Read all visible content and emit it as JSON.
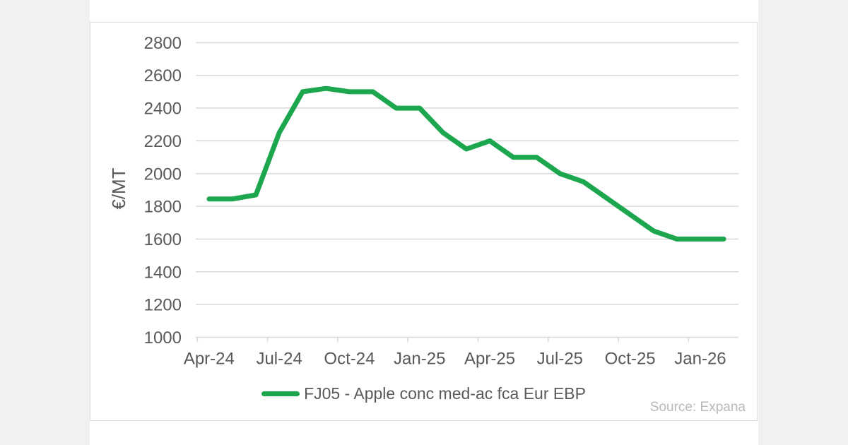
{
  "page": {
    "background_color": "#f1f1f1",
    "card_background_color": "#ffffff",
    "card_border_color": "#dcdcdc"
  },
  "chart_data": {
    "type": "line",
    "title": "",
    "xlabel": "",
    "ylabel": "€/MT",
    "x": [
      "Apr-24",
      "May-24",
      "Jun-24",
      "Jul-24",
      "Aug-24",
      "Sep-24",
      "Oct-24",
      "Nov-24",
      "Dec-24",
      "Jan-25",
      "Feb-25",
      "Mar-25",
      "Apr-25",
      "May-25",
      "Jun-25",
      "Jul-25",
      "Aug-25",
      "Sep-25",
      "Oct-25",
      "Nov-25",
      "Dec-25",
      "Jan-26",
      "Feb-26"
    ],
    "series": [
      {
        "name": "FJ05 - Apple conc med-ac fca Eur EBP",
        "color": "#1ca64d",
        "values": [
          1845,
          1845,
          1870,
          2250,
          2500,
          2520,
          2500,
          2500,
          2400,
          2400,
          2250,
          2150,
          2200,
          2100,
          2100,
          2000,
          1950,
          1850,
          1750,
          1650,
          1600,
          1600,
          1600
        ]
      }
    ],
    "x_tick_labels": [
      "Apr-24",
      "Jul-24",
      "Oct-24",
      "Jan-25",
      "Apr-25",
      "Jul-25",
      "Oct-25",
      "Jan-26"
    ],
    "y_ticks": [
      1000,
      1200,
      1400,
      1600,
      1800,
      2000,
      2200,
      2400,
      2600,
      2800
    ],
    "ylim": [
      1000,
      2800
    ],
    "grid": true,
    "gridline_color": "#d9d9d9",
    "axis_text_color": "#595959",
    "legend_position": "bottom-center",
    "source": "Source: Expana",
    "source_color": "#b9b9b9"
  }
}
